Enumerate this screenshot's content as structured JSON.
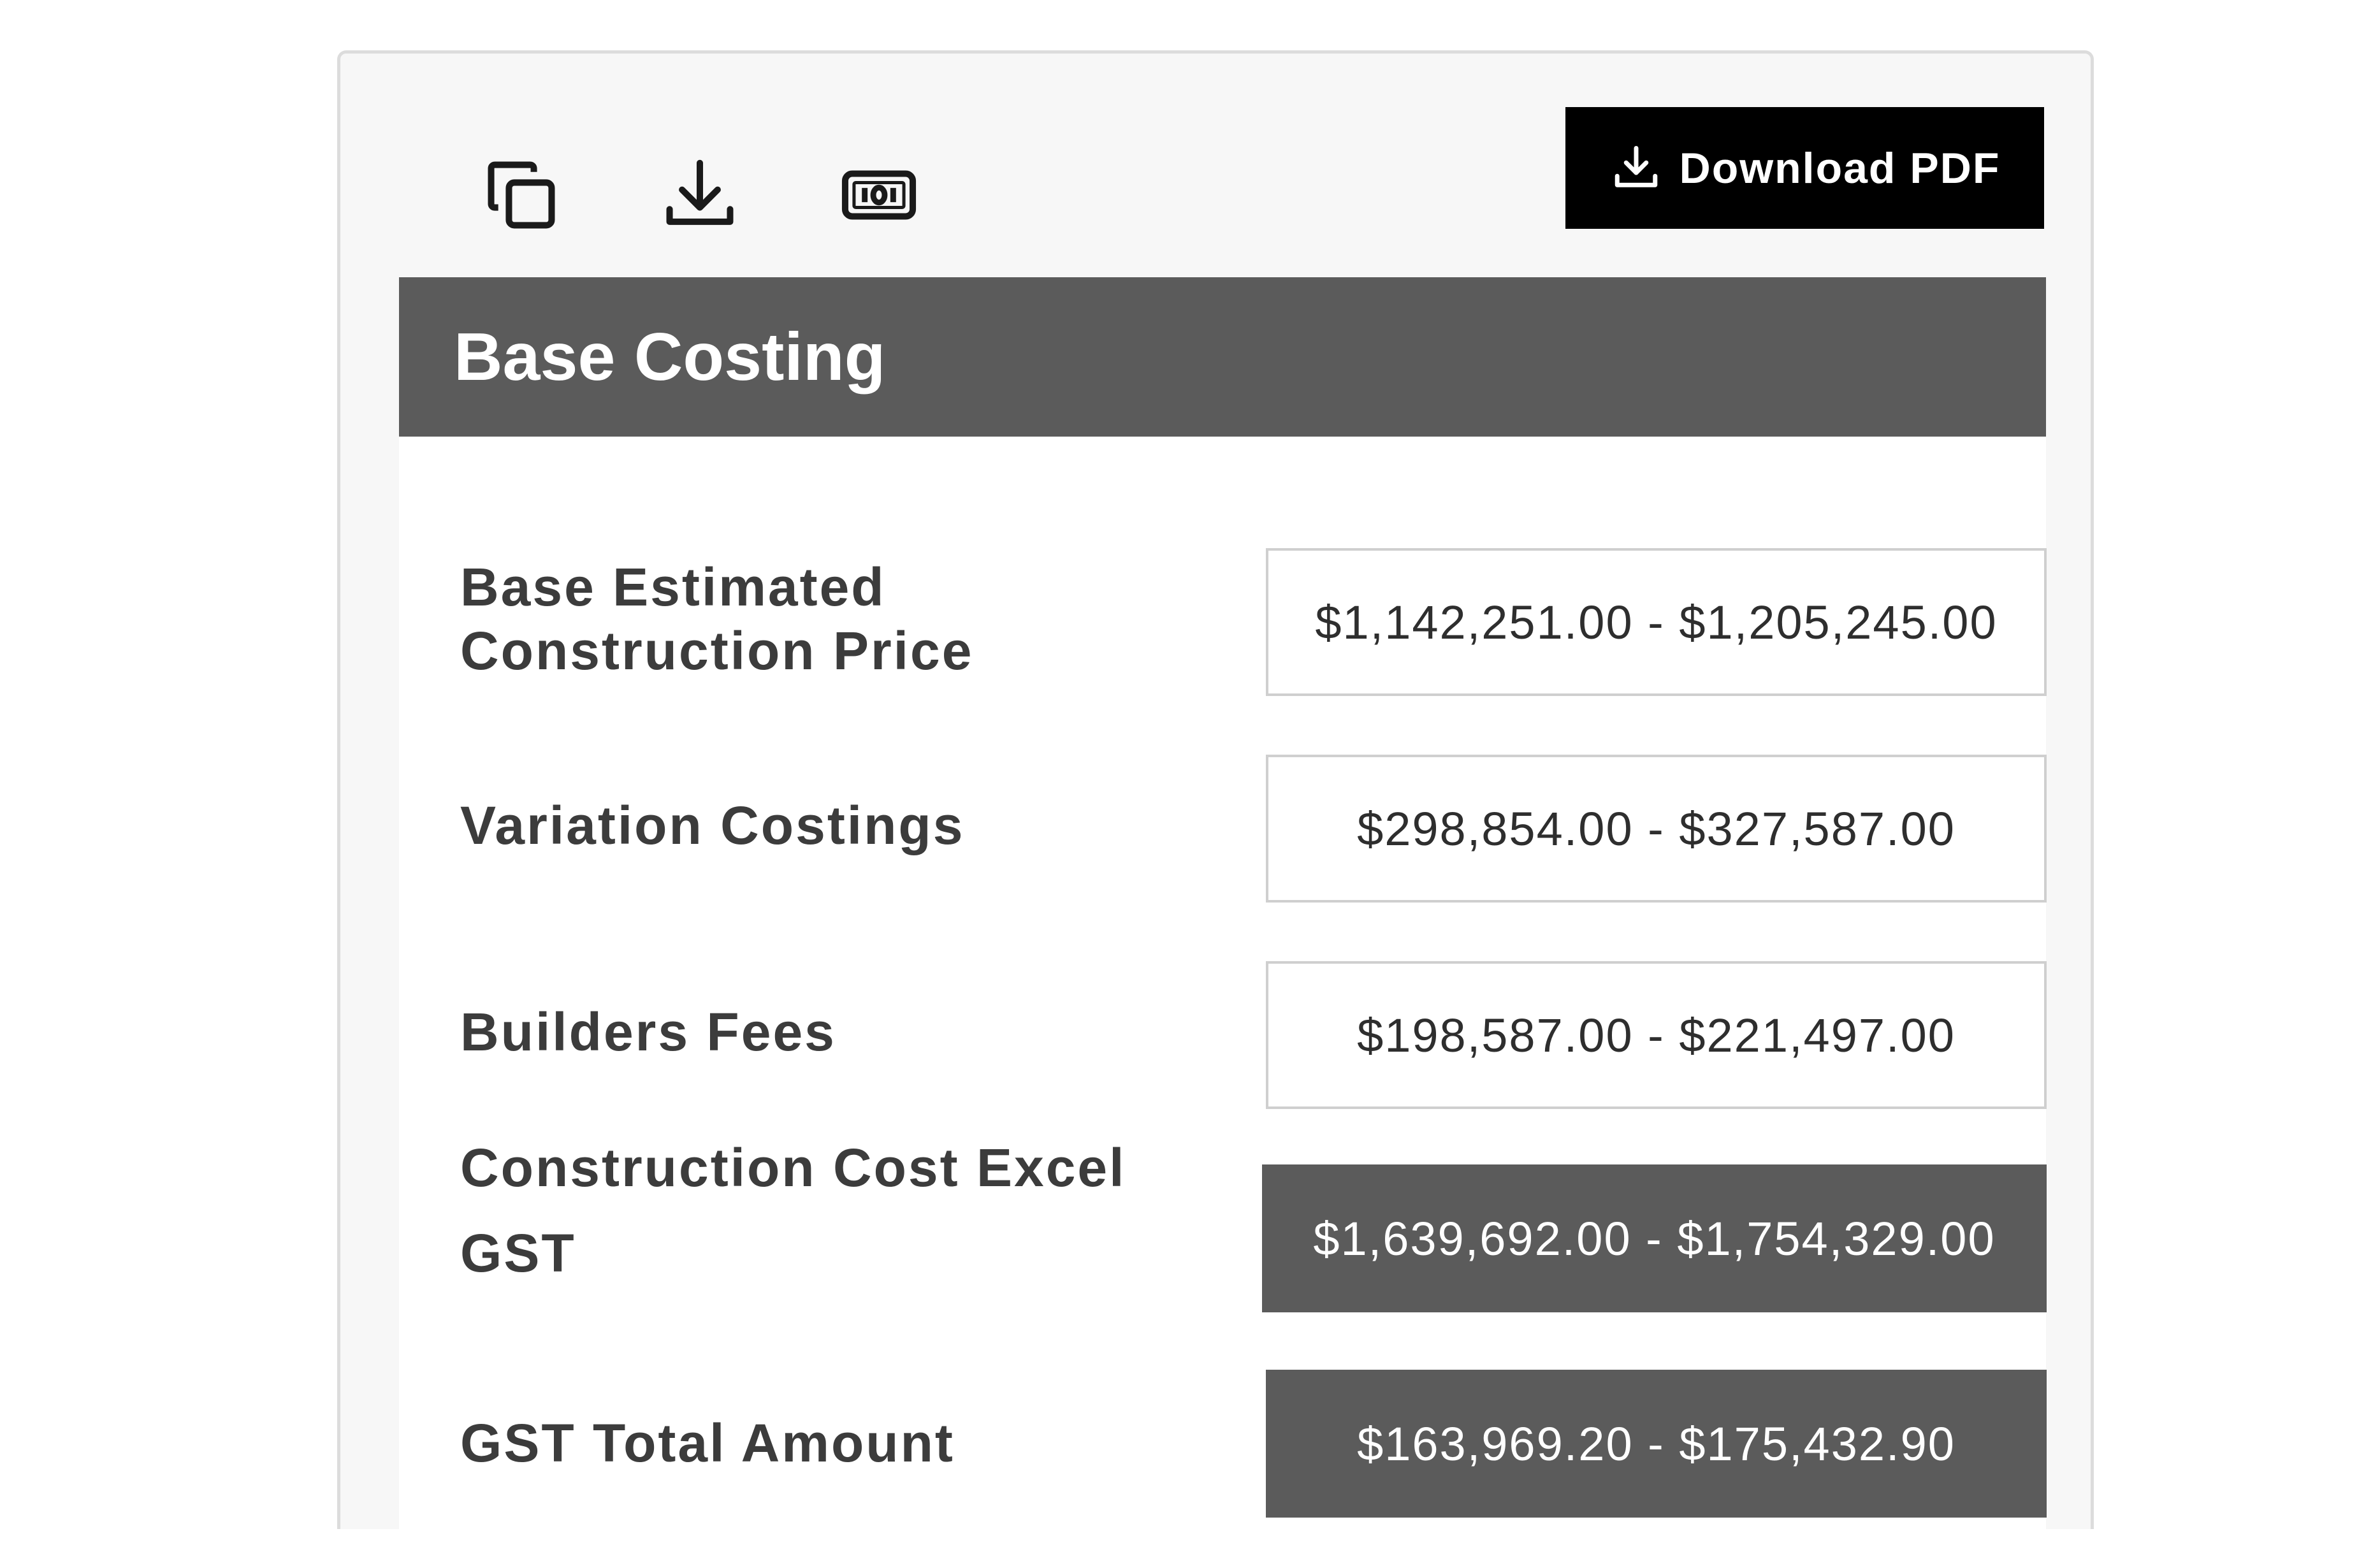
{
  "toolbar": {
    "icons": [
      "copy-icon",
      "download-icon",
      "money-icon"
    ],
    "download_pdf_label": "Download PDF"
  },
  "card": {
    "title": "Base Costing",
    "rows": [
      {
        "label": "Base Estimated Construction Price",
        "value": "$1,142,251.00 - $1,205,245.00",
        "highlight": false
      },
      {
        "label": "Variation Costings",
        "value": "$298,854.00 - $327,587.00",
        "highlight": false
      },
      {
        "label": "Builders Fees",
        "value": "$198,587.00 - $221,497.00",
        "highlight": false
      },
      {
        "label": "Construction Cost Excel GST",
        "value": "$1,639,692.00 - $1,754,329.00",
        "highlight": true
      },
      {
        "label": "GST Total Amount",
        "value": "$163,969.20 - $175,432.90",
        "highlight": true
      }
    ]
  },
  "colors": {
    "header_bg": "#5b5b5b",
    "button_bg": "#000000",
    "panel_bg": "#f7f7f7"
  }
}
